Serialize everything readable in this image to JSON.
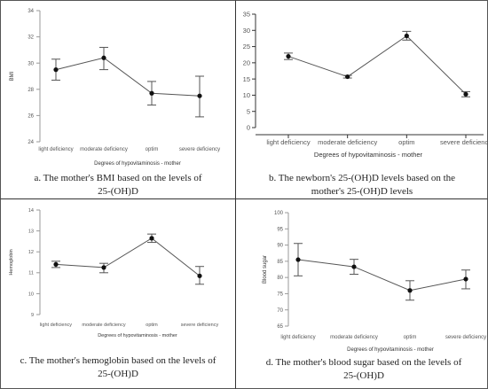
{
  "chart_data": [
    {
      "type": "line",
      "panel": "a",
      "categories": [
        "light deficiency",
        "moderate deficiency",
        "optim",
        "severe deficiency"
      ],
      "series": [
        {
          "values": [
            29.5,
            30.4,
            27.7,
            27.5
          ],
          "error_low": [
            28.7,
            29.5,
            26.8,
            25.9
          ],
          "error_high": [
            30.3,
            31.2,
            28.6,
            29.0
          ]
        }
      ],
      "ylabel": "BMI",
      "xlabel": "Degrees of hypovitaminosis - mother",
      "yticks": [
        24,
        26,
        28,
        30,
        32,
        34
      ],
      "ylim": [
        24,
        34
      ],
      "grid": false,
      "caption_lines": [
        "a. The mother's BMI based on the levels of",
        "25-(OH)D"
      ]
    },
    {
      "type": "line",
      "panel": "b",
      "categories": [
        "light deficiency",
        "moderate deficiency",
        "optim",
        "severe deficiency"
      ],
      "series": [
        {
          "values": [
            22.0,
            15.7,
            28.3,
            10.3
          ],
          "error_low": [
            21.0,
            15.3,
            27.0,
            9.5
          ],
          "error_high": [
            23.0,
            16.1,
            29.7,
            11.1
          ]
        }
      ],
      "ylabel": "",
      "xlabel": "Degrees of hypovitaminosis - mother",
      "yticks": [
        0,
        5,
        10,
        15,
        20,
        25,
        30,
        35
      ],
      "ylim": [
        0,
        35
      ],
      "grid": false,
      "caption_lines": [
        "b. The newborn's 25-(OH)D levels based on the",
        "mother's 25-(OH)D levels"
      ]
    },
    {
      "type": "line",
      "panel": "c",
      "categories": [
        "light deficiency",
        "moderate deficiency",
        "optim",
        "severe deficiency"
      ],
      "series": [
        {
          "values": [
            11.4,
            11.25,
            12.65,
            10.85
          ],
          "error_low": [
            11.25,
            11.0,
            12.45,
            10.45
          ],
          "error_high": [
            11.55,
            11.45,
            12.85,
            11.3
          ]
        }
      ],
      "ylabel": "Hemoglobin",
      "xlabel": "Degrees of hypovitaminosis - mother",
      "yticks": [
        9,
        10,
        11,
        12,
        13,
        14
      ],
      "ylim": [
        9,
        14
      ],
      "grid": false,
      "caption_lines": [
        "c. The mother's hemoglobin based on the levels of",
        "25-(OH)D"
      ]
    },
    {
      "type": "line",
      "panel": "d",
      "categories": [
        "light deficiency",
        "moderate deficiency",
        "optim",
        "severe deficiency"
      ],
      "series": [
        {
          "values": [
            85.5,
            83.3,
            76.0,
            79.5
          ],
          "error_low": [
            80.5,
            81.0,
            73.0,
            76.5
          ],
          "error_high": [
            90.5,
            85.6,
            79.0,
            82.3
          ]
        }
      ],
      "ylabel": "Blood sugar",
      "xlabel": "Degrees of hypovitaminosis - mother",
      "yticks": [
        65,
        70,
        75,
        80,
        85,
        90,
        95,
        100
      ],
      "ylim": [
        65,
        100
      ],
      "grid": false,
      "caption_lines": [
        "d. The mother's blood sugar based on the levels of",
        "25-(OH)D"
      ]
    }
  ]
}
